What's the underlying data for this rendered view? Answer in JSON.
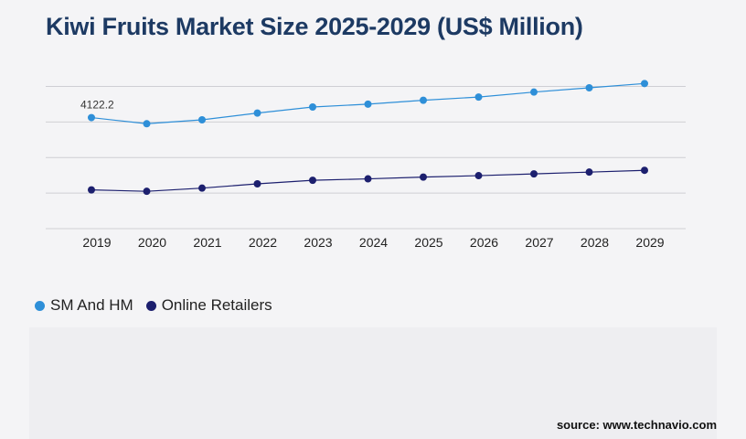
{
  "title": "Kiwi Fruits Market Size 2025-2029 (US$ Million)",
  "source": "source: www.technavio.com",
  "chart_data": {
    "type": "line",
    "title": "Kiwi Fruits Market Size 2025-2029 (US$ Million)",
    "xlabel": "",
    "ylabel": "",
    "categories": [
      "2019",
      "2020",
      "2021",
      "2022",
      "2023",
      "2024",
      "2025",
      "2026",
      "2027",
      "2028",
      "2029"
    ],
    "grid": true,
    "legend_position": "bottom-left",
    "series": [
      {
        "name": "SM And HM",
        "color": "#2e8fd8",
        "values": [
          4122.2,
          3950,
          4060,
          4250,
          4420,
          4500,
          4610,
          4700,
          4840,
          4960,
          5080
        ],
        "labels": [
          "4122.2",
          "",
          "",
          "",
          "",
          "",
          "",
          "",
          "",
          "",
          ""
        ]
      },
      {
        "name": "Online Retailers",
        "color": "#1c1f6e",
        "values": [
          2090,
          2050,
          2140,
          2260,
          2360,
          2400,
          2450,
          2490,
          2540,
          2590,
          2640
        ]
      }
    ],
    "ylim": [
      1000,
      5500
    ],
    "gridlines": [
      2000,
      3000,
      4000,
      5000
    ]
  }
}
